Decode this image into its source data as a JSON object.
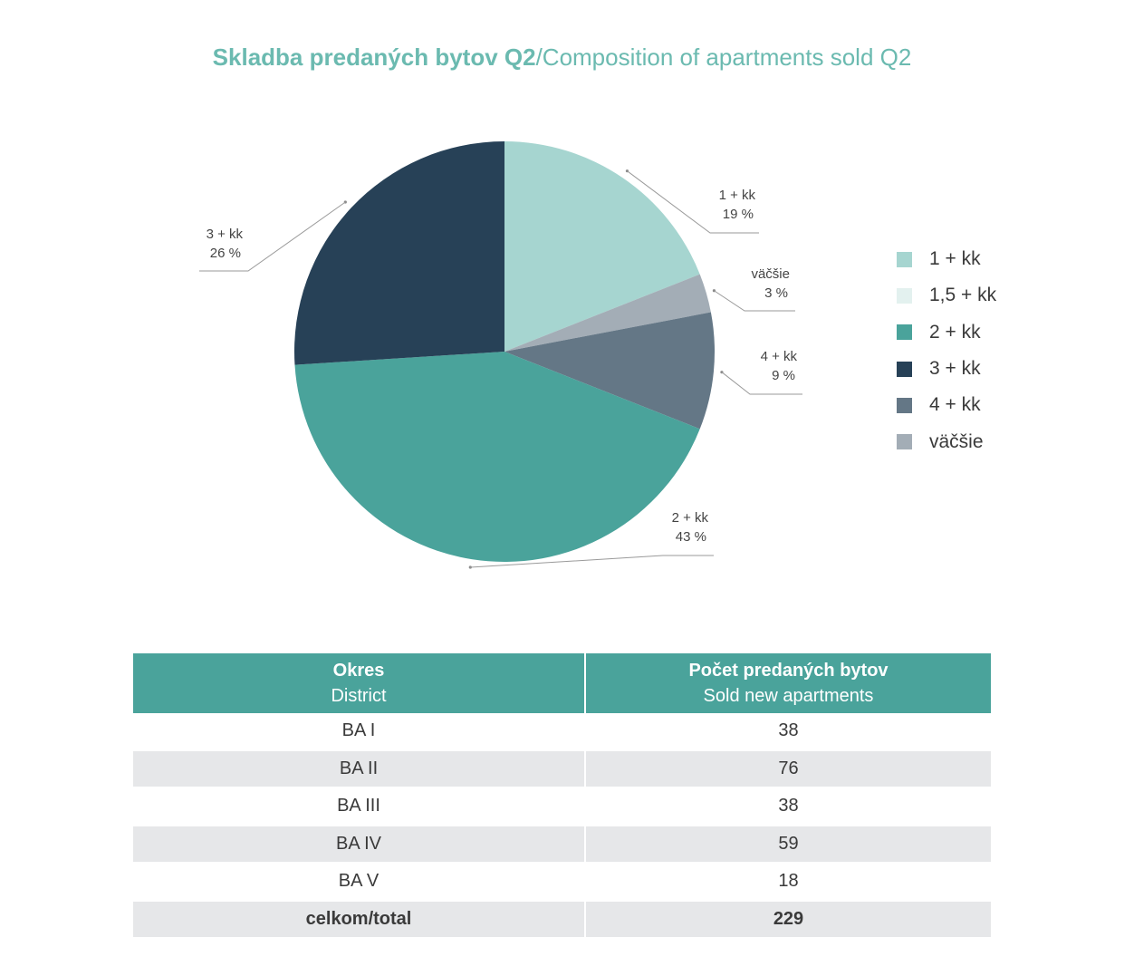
{
  "title": {
    "bold": "Skladba predaných bytov Q2",
    "rest": "/Composition of apartments sold Q2"
  },
  "chart_data": {
    "type": "pie",
    "categories": [
      "1 + kk",
      "1,5 + kk",
      "2 + kk",
      "3 + kk",
      "4 + kk",
      "väčšie"
    ],
    "values": [
      19,
      0,
      43,
      26,
      9,
      3
    ],
    "value_labels": [
      "19 %",
      "",
      "43 %",
      "26 %",
      "9 %",
      "3 %"
    ],
    "colors": [
      "#a6d5d0",
      "#e3f1ef",
      "#4aa39b",
      "#274157",
      "#647786",
      "#a3adb6"
    ],
    "legend_position": "right"
  },
  "table": {
    "headers": [
      {
        "main": "Okres",
        "sub": "District"
      },
      {
        "main": "Počet predaných bytov",
        "sub": "Sold new apartments"
      }
    ],
    "rows": [
      [
        "BA I",
        "38"
      ],
      [
        "BA II",
        "76"
      ],
      [
        "BA III",
        "38"
      ],
      [
        "BA IV",
        "59"
      ],
      [
        "BA V",
        "18"
      ]
    ],
    "total": [
      "celkom/total",
      "229"
    ]
  }
}
